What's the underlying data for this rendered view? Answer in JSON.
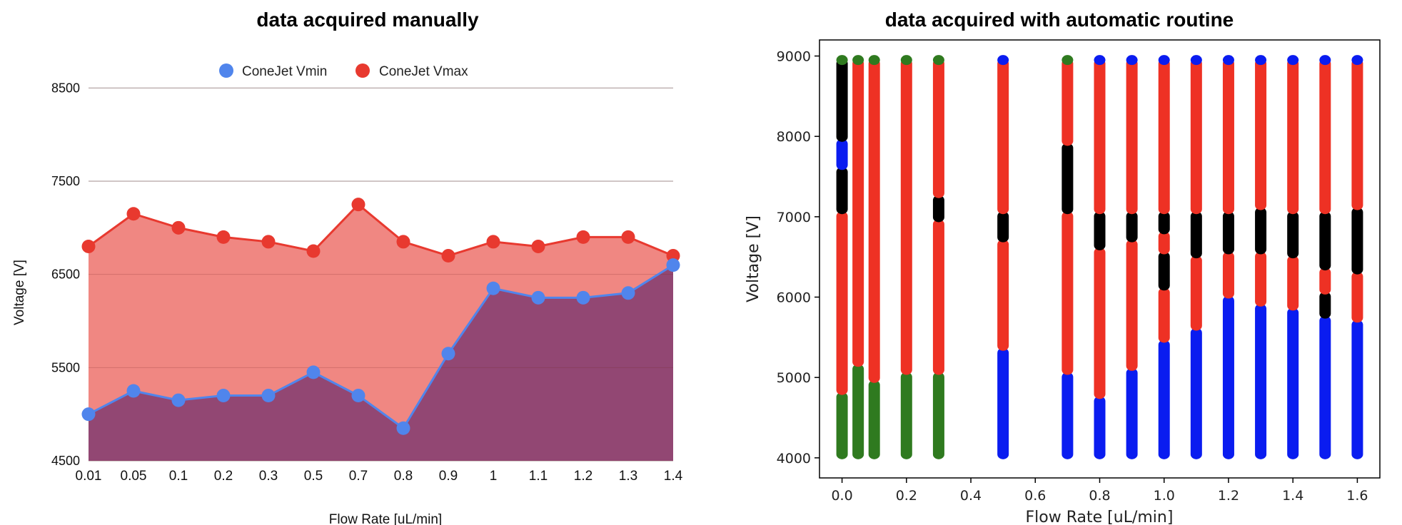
{
  "colors": {
    "vmin": "#5085ec",
    "vmax": "#e8392f",
    "vmin_fill": "#924773",
    "vmax_fill": "#f08782",
    "auto_blue": "#0a1cf0",
    "auto_red": "#ee3124",
    "auto_black": "#000000",
    "auto_green": "#2f7a1f"
  },
  "chart_data": [
    {
      "type": "area",
      "title": "data acquired manually",
      "xlabel": "Flow Rate [uL/min]",
      "ylabel": "Voltage [V]",
      "ylim": [
        4500,
        9000
      ],
      "yticks": [
        "4500",
        "5500",
        "6500",
        "7500",
        "8500"
      ],
      "grid": true,
      "legend_position": "top",
      "categories": [
        "0.01",
        "0.05",
        "0.1",
        "0.2",
        "0.3",
        "0.5",
        "0.7",
        "0.8",
        "0.9",
        "1",
        "1.1",
        "1.2",
        "1.3",
        "1.4"
      ],
      "series": [
        {
          "name": "ConeJet Vmin",
          "values": [
            5000,
            5250,
            5150,
            5200,
            5200,
            5450,
            5200,
            4850,
            5650,
            6350,
            6250,
            6250,
            6300,
            6600
          ]
        },
        {
          "name": "ConeJet Vmax",
          "values": [
            6800,
            7150,
            7000,
            6900,
            6850,
            6750,
            7250,
            6850,
            6700,
            6850,
            6800,
            6900,
            6900,
            6700
          ]
        }
      ]
    },
    {
      "type": "scatter",
      "title": "data acquired with automatic routine",
      "xlabel": "Flow Rate [uL/min]",
      "ylabel": "Voltage [V]",
      "xlim": [
        -0.07,
        1.67
      ],
      "ylim": [
        3750,
        9200
      ],
      "xticks": [
        "0.0",
        "0.2",
        "0.4",
        "0.6",
        "0.8",
        "1.0",
        "1.2",
        "1.4",
        "1.6"
      ],
      "yticks": [
        "4000",
        "5000",
        "6000",
        "7000",
        "8000",
        "9000"
      ],
      "grid": false,
      "columns": [
        {
          "x": 0.0,
          "segments": [
            {
              "from": 4000,
              "to": 4800,
              "color": "green"
            },
            {
              "from": 4800,
              "to": 7050,
              "color": "red"
            },
            {
              "from": 7050,
              "to": 7600,
              "color": "black"
            },
            {
              "from": 7600,
              "to": 7950,
              "color": "blue"
            },
            {
              "from": 7950,
              "to": 8950,
              "color": "black"
            }
          ]
        },
        {
          "x": 0.05,
          "segments": [
            {
              "from": 4000,
              "to": 5150,
              "color": "green"
            },
            {
              "from": 5150,
              "to": 8950,
              "color": "red"
            }
          ]
        },
        {
          "x": 0.1,
          "segments": [
            {
              "from": 4000,
              "to": 4950,
              "color": "green"
            },
            {
              "from": 4950,
              "to": 8950,
              "color": "red"
            }
          ]
        },
        {
          "x": 0.2,
          "segments": [
            {
              "from": 4000,
              "to": 5050,
              "color": "green"
            },
            {
              "from": 5050,
              "to": 8950,
              "color": "red"
            }
          ]
        },
        {
          "x": 0.3,
          "segments": [
            {
              "from": 4000,
              "to": 5050,
              "color": "green"
            },
            {
              "from": 5050,
              "to": 6950,
              "color": "red"
            },
            {
              "from": 6950,
              "to": 7250,
              "color": "black"
            },
            {
              "from": 7250,
              "to": 8950,
              "color": "red"
            }
          ]
        },
        {
          "x": 0.5,
          "segments": [
            {
              "from": 4000,
              "to": 5350,
              "color": "blue"
            },
            {
              "from": 5350,
              "to": 6700,
              "color": "red"
            },
            {
              "from": 6700,
              "to": 7050,
              "color": "black"
            },
            {
              "from": 7050,
              "to": 8950,
              "color": "red"
            }
          ]
        },
        {
          "x": 0.7,
          "segments": [
            {
              "from": 4000,
              "to": 5050,
              "color": "blue"
            },
            {
              "from": 5050,
              "to": 7050,
              "color": "red"
            },
            {
              "from": 7050,
              "to": 7900,
              "color": "black"
            },
            {
              "from": 7900,
              "to": 8950,
              "color": "red"
            }
          ]
        },
        {
          "x": 0.8,
          "segments": [
            {
              "from": 4000,
              "to": 4750,
              "color": "blue"
            },
            {
              "from": 4750,
              "to": 6600,
              "color": "red"
            },
            {
              "from": 6600,
              "to": 7050,
              "color": "black"
            },
            {
              "from": 7050,
              "to": 8950,
              "color": "red"
            }
          ]
        },
        {
          "x": 0.9,
          "segments": [
            {
              "from": 4000,
              "to": 5100,
              "color": "blue"
            },
            {
              "from": 5100,
              "to": 6700,
              "color": "red"
            },
            {
              "from": 6700,
              "to": 7050,
              "color": "black"
            },
            {
              "from": 7050,
              "to": 8950,
              "color": "red"
            }
          ]
        },
        {
          "x": 1.0,
          "segments": [
            {
              "from": 4000,
              "to": 5450,
              "color": "blue"
            },
            {
              "from": 5450,
              "to": 6100,
              "color": "red"
            },
            {
              "from": 6100,
              "to": 6550,
              "color": "black"
            },
            {
              "from": 6550,
              "to": 6800,
              "color": "red"
            },
            {
              "from": 6800,
              "to": 7050,
              "color": "black"
            },
            {
              "from": 7050,
              "to": 8950,
              "color": "red"
            }
          ]
        },
        {
          "x": 1.1,
          "segments": [
            {
              "from": 4000,
              "to": 5600,
              "color": "blue"
            },
            {
              "from": 5600,
              "to": 6500,
              "color": "red"
            },
            {
              "from": 6500,
              "to": 7050,
              "color": "black"
            },
            {
              "from": 7050,
              "to": 8950,
              "color": "red"
            }
          ]
        },
        {
          "x": 1.2,
          "segments": [
            {
              "from": 4000,
              "to": 6000,
              "color": "blue"
            },
            {
              "from": 6000,
              "to": 6550,
              "color": "red"
            },
            {
              "from": 6550,
              "to": 7050,
              "color": "black"
            },
            {
              "from": 7050,
              "to": 8950,
              "color": "red"
            }
          ]
        },
        {
          "x": 1.3,
          "segments": [
            {
              "from": 4000,
              "to": 5900,
              "color": "blue"
            },
            {
              "from": 5900,
              "to": 6550,
              "color": "red"
            },
            {
              "from": 6550,
              "to": 7100,
              "color": "black"
            },
            {
              "from": 7100,
              "to": 8950,
              "color": "red"
            }
          ]
        },
        {
          "x": 1.4,
          "segments": [
            {
              "from": 4000,
              "to": 5850,
              "color": "blue"
            },
            {
              "from": 5850,
              "to": 6500,
              "color": "red"
            },
            {
              "from": 6500,
              "to": 7050,
              "color": "black"
            },
            {
              "from": 7050,
              "to": 8950,
              "color": "red"
            }
          ]
        },
        {
          "x": 1.5,
          "segments": [
            {
              "from": 4000,
              "to": 5750,
              "color": "blue"
            },
            {
              "from": 5750,
              "to": 6050,
              "color": "black"
            },
            {
              "from": 6050,
              "to": 6350,
              "color": "red"
            },
            {
              "from": 6350,
              "to": 7050,
              "color": "black"
            },
            {
              "from": 7050,
              "to": 8950,
              "color": "red"
            }
          ]
        },
        {
          "x": 1.6,
          "segments": [
            {
              "from": 4000,
              "to": 5700,
              "color": "blue"
            },
            {
              "from": 5700,
              "to": 6300,
              "color": "red"
            },
            {
              "from": 6300,
              "to": 7100,
              "color": "black"
            },
            {
              "from": 7100,
              "to": 8950,
              "color": "red"
            }
          ]
        }
      ],
      "top_markers": [
        {
          "x": 0.0,
          "color": "green"
        },
        {
          "x": 0.05,
          "color": "green"
        },
        {
          "x": 0.1,
          "color": "green"
        },
        {
          "x": 0.2,
          "color": "green"
        },
        {
          "x": 0.3,
          "color": "green"
        },
        {
          "x": 0.5,
          "color": "blue"
        },
        {
          "x": 0.7,
          "color": "green"
        },
        {
          "x": 0.8,
          "color": "blue"
        },
        {
          "x": 0.9,
          "color": "blue"
        },
        {
          "x": 1.0,
          "color": "blue"
        },
        {
          "x": 1.1,
          "color": "blue"
        },
        {
          "x": 1.2,
          "color": "blue"
        },
        {
          "x": 1.3,
          "color": "blue"
        },
        {
          "x": 1.4,
          "color": "blue"
        },
        {
          "x": 1.5,
          "color": "blue"
        },
        {
          "x": 1.6,
          "color": "blue"
        }
      ]
    }
  ]
}
